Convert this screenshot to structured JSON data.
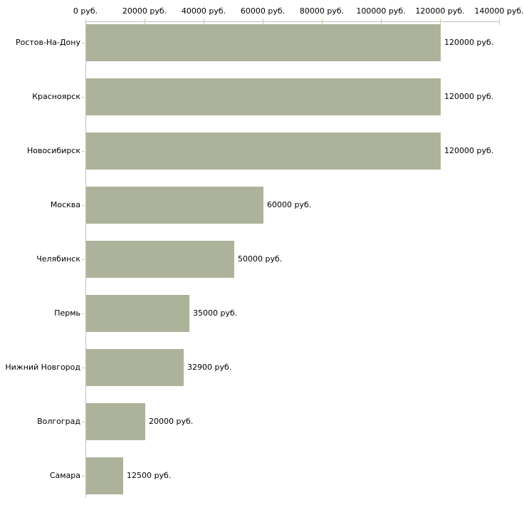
{
  "chart_data": {
    "type": "bar",
    "orientation": "horizontal",
    "title": "",
    "xlabel": "",
    "ylabel": "",
    "unit": "руб.",
    "categories": [
      "Ростов-На-Дону",
      "Красноярск",
      "Новосибирск",
      "Москва",
      "Челябинск",
      "Пермь",
      "Нижний Новгород",
      "Волгоград",
      "Самара"
    ],
    "values": [
      120000,
      120000,
      120000,
      60000,
      50000,
      35000,
      32900,
      20000,
      12500
    ],
    "value_labels": [
      "120000 руб.",
      "120000 руб.",
      "120000 руб.",
      "60000 руб.",
      "50000 руб.",
      "35000 руб.",
      "32900 руб.",
      "20000 руб.",
      "12500 руб."
    ],
    "x_axis": {
      "position": "top",
      "min": 0,
      "max": 140000,
      "ticks": [
        {
          "value": 0,
          "label": "0 руб."
        },
        {
          "value": 20000,
          "label": "20000 руб."
        },
        {
          "value": 40000,
          "label": "40000 руб."
        },
        {
          "value": 60000,
          "label": "60000 руб."
        },
        {
          "value": 80000,
          "label": "80000 руб."
        },
        {
          "value": 100000,
          "label": "100000 руб."
        },
        {
          "value": 120000,
          "label": "120000 руб."
        },
        {
          "value": 140000,
          "label": "140000 руб."
        }
      ]
    },
    "legend": null,
    "grid": false,
    "colors": {
      "bar": "#adb29b",
      "axis_line": "#c0c0c0",
      "tick": "#c9c9a5",
      "text": "#000000",
      "background": "#ffffff"
    }
  }
}
